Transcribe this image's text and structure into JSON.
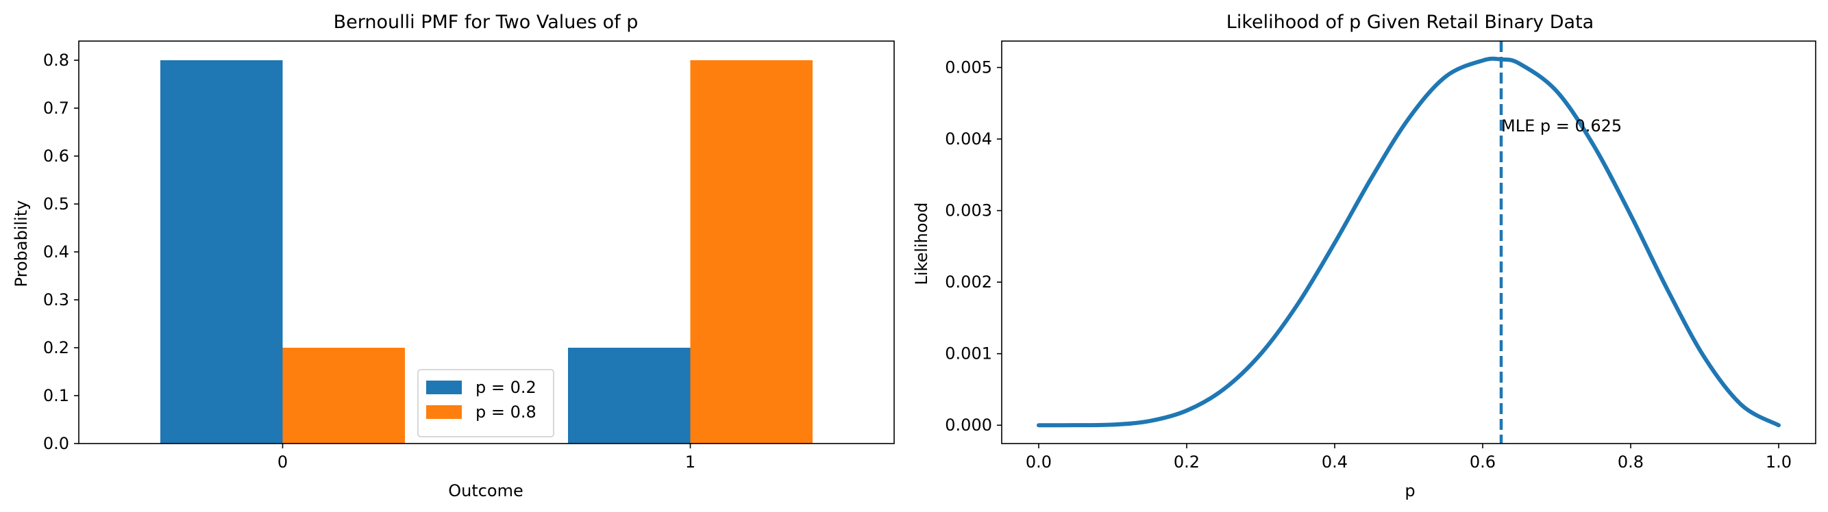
{
  "chart_data": [
    {
      "type": "bar",
      "title": "Bernoulli PMF for Two Values of p",
      "xlabel": "Outcome",
      "ylabel": "Probability",
      "categories": [
        "0",
        "1"
      ],
      "series": [
        {
          "name": "p = 0.2",
          "values": [
            0.8,
            0.2
          ],
          "color": "#1f77b4"
        },
        {
          "name": "p = 0.8",
          "values": [
            0.2,
            0.8
          ],
          "color": "#ff7f0e"
        }
      ],
      "ylim": [
        0,
        0.84
      ],
      "yticks": [
        0.0,
        0.1,
        0.2,
        0.3,
        0.4,
        0.5,
        0.6,
        0.7,
        0.8
      ],
      "ytick_labels": [
        "0.0",
        "0.1",
        "0.2",
        "0.3",
        "0.4",
        "0.5",
        "0.6",
        "0.7",
        "0.8"
      ],
      "legend": "lower-center",
      "grid": false
    },
    {
      "type": "line",
      "title": "Likelihood of p Given Retail Binary Data",
      "xlabel": "p",
      "ylabel": "Likelihood",
      "x": [
        0.0,
        0.05,
        0.1,
        0.15,
        0.2,
        0.25,
        0.3,
        0.35,
        0.4,
        0.45,
        0.5,
        0.55,
        0.6,
        0.625,
        0.65,
        0.7,
        0.75,
        0.8,
        0.85,
        0.9,
        0.95,
        1.0
      ],
      "series": [
        {
          "y": [
            0.0,
            1e-06,
            8e-06,
            5.9e-05,
            0.000205,
            0.000503,
            0.000996,
            0.001692,
            0.002548,
            0.003461,
            0.004286,
            0.004873,
            0.005097,
            0.005113,
            0.005052,
            0.004668,
            0.00391,
            0.002938,
            0.001889,
            0.000943,
            0.000281,
            0.0
          ],
          "color": "#1f77b4"
        }
      ],
      "mle": {
        "value": 0.625,
        "label": "MLE p = 0.625"
      },
      "xlim": [
        -0.05,
        1.05
      ],
      "ylim": [
        -0.000256,
        0.005369
      ],
      "xticks": [
        0.0,
        0.2,
        0.4,
        0.6,
        0.8,
        1.0
      ],
      "xtick_labels": [
        "0.0",
        "0.2",
        "0.4",
        "0.6",
        "0.8",
        "1.0"
      ],
      "yticks": [
        0.0,
        0.001,
        0.002,
        0.003,
        0.004,
        0.005
      ],
      "ytick_labels": [
        "0.000",
        "0.001",
        "0.002",
        "0.003",
        "0.004",
        "0.005"
      ],
      "grid": false
    }
  ]
}
